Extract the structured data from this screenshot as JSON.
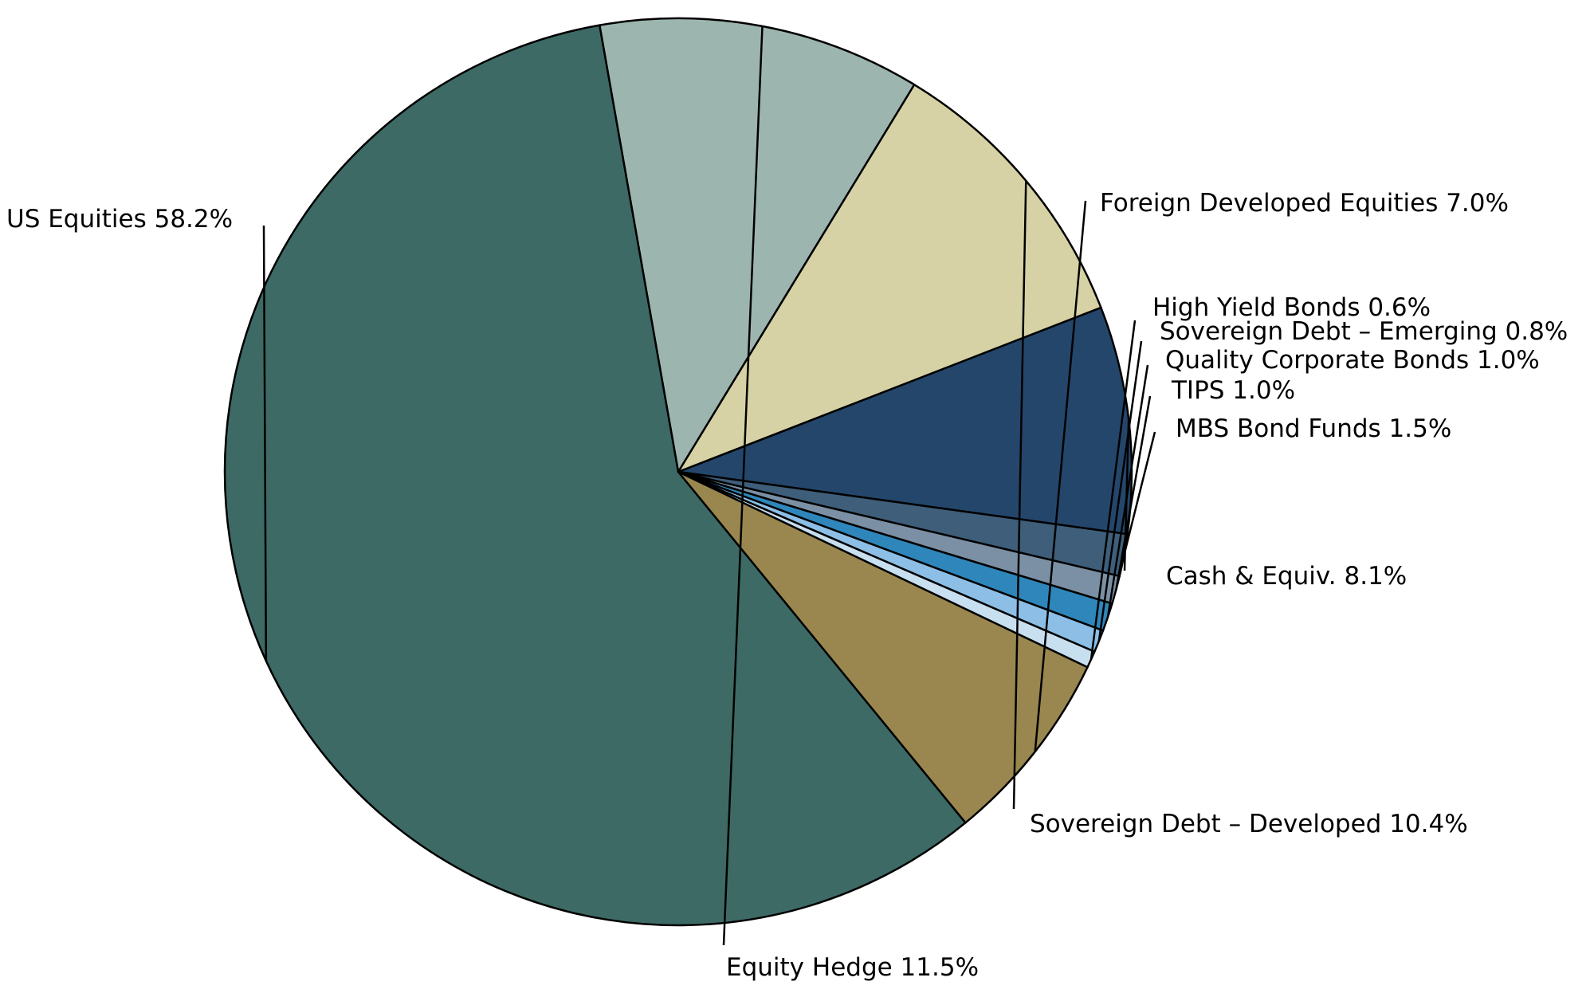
{
  "chart_data": {
    "type": "pie",
    "start": "counterclockwise from the right",
    "slices": [
      {
        "label": "Cash & Equiv. 8.1%",
        "value": 8.1,
        "color": "#24466b"
      },
      {
        "label": "Sovereign Debt – Developed 10.4%",
        "value": 10.4,
        "color": "#d6d2a5"
      },
      {
        "label": "Equity Hedge 11.5%",
        "value": 11.5,
        "color": "#9db5af"
      },
      {
        "label": "US Equities 58.2%",
        "value": 58.2,
        "color": "#3d6a65"
      },
      {
        "label": "Foreign Developed Equities 7.0%",
        "value": 7.0,
        "color": "#99874f"
      },
      {
        "label": "High Yield Bonds 0.6%",
        "value": 0.6,
        "color": "#c8dff0"
      },
      {
        "label": "Sovereign Debt – Emerging 0.8%",
        "value": 0.8,
        "color": "#8dbfe6"
      },
      {
        "label": "Quality Corporate Bonds 1.0%",
        "value": 1.0,
        "color": "#2f86ba"
      },
      {
        "label": "TIPS 1.0%",
        "value": 1.0,
        "color": "#7b90a4"
      },
      {
        "label": "MBS Bond Funds 1.5%",
        "value": 1.5,
        "color": "#3e5e7a"
      }
    ]
  }
}
